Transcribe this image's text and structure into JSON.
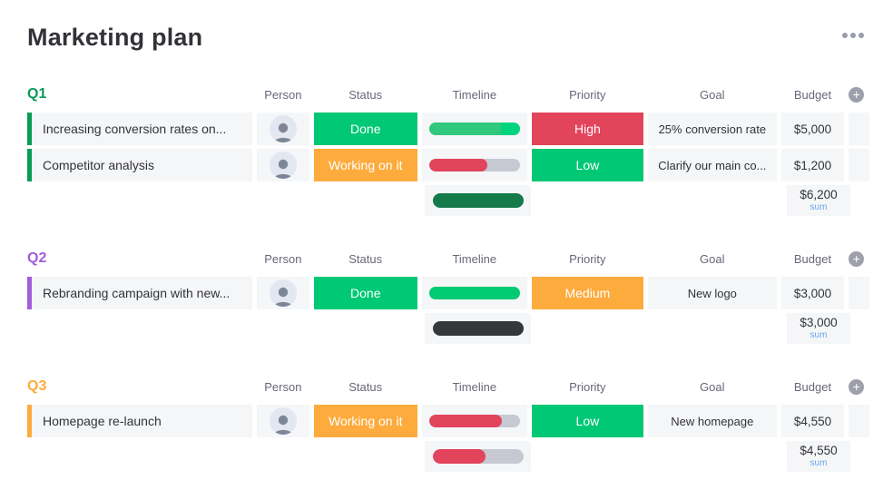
{
  "page": {
    "title": "Marketing plan"
  },
  "icons": {
    "board_menu": "more-horizontal-icon",
    "add_column": "plus-icon",
    "person": "person-avatar"
  },
  "columns": {
    "person": "Person",
    "status": "Status",
    "timeline": "Timeline",
    "priority": "Priority",
    "goal": "Goal",
    "budget": "Budget"
  },
  "groups": [
    {
      "label": "Q1",
      "color": "#089b57",
      "rows": [
        {
          "name": "Increasing conversion rates on...",
          "status": {
            "label": "Done",
            "bg": "#00c875"
          },
          "timeline": {
            "track": "#c6c9d2",
            "segments": [
              {
                "pct": 79,
                "color": "#30c87d"
              },
              {
                "pct": 21,
                "color": "#00d47e"
              }
            ]
          },
          "priority": {
            "label": "High",
            "bg": "#e2445c"
          },
          "goal": "25% conversion rate",
          "budget": "$5,000"
        },
        {
          "name": "Competitor analysis",
          "status": {
            "label": "Working on it",
            "bg": "#fdab3d"
          },
          "timeline": {
            "track": "#c6c9d2",
            "segments": [
              {
                "pct": 64,
                "color": "#e2445c"
              }
            ]
          },
          "priority": {
            "label": "Low",
            "bg": "#00c875"
          },
          "goal": "Clarify our main co...",
          "budget": "$1,200"
        }
      ],
      "summary": {
        "timeline": {
          "track": "#c6c9d2",
          "segments": [
            {
              "pct": 100,
              "color": "#157a4a"
            }
          ]
        },
        "budget": "$6,200",
        "sum_label": "sum"
      }
    },
    {
      "label": "Q2",
      "color": "#a25ddc",
      "rows": [
        {
          "name": "Rebranding campaign with new...",
          "status": {
            "label": "Done",
            "bg": "#00c875"
          },
          "timeline": {
            "track": "#c6c9d2",
            "segments": [
              {
                "pct": 100,
                "color": "#00ca72"
              }
            ]
          },
          "priority": {
            "label": "Medium",
            "bg": "#fdab3d"
          },
          "goal": "New logo",
          "budget": "$3,000"
        }
      ],
      "summary": {
        "timeline": {
          "track": "#c6c9d2",
          "segments": [
            {
              "pct": 100,
              "color": "#35373b"
            }
          ]
        },
        "budget": "$3,000",
        "sum_label": "sum"
      }
    },
    {
      "label": "Q3",
      "color": "#fdab3d",
      "rows": [
        {
          "name": "Homepage re-launch",
          "status": {
            "label": "Working on it",
            "bg": "#fdab3d"
          },
          "timeline": {
            "track": "#c6c9d2",
            "segments": [
              {
                "pct": 80,
                "color": "#e2445c"
              }
            ]
          },
          "priority": {
            "label": "Low",
            "bg": "#00c875"
          },
          "goal": "New homepage",
          "budget": "$4,550"
        }
      ],
      "summary": {
        "timeline": {
          "track": "#c6c9d2",
          "segments": [
            {
              "pct": 58,
              "color": "#e2445c"
            }
          ]
        },
        "budget": "$4,550",
        "sum_label": "sum"
      }
    }
  ]
}
